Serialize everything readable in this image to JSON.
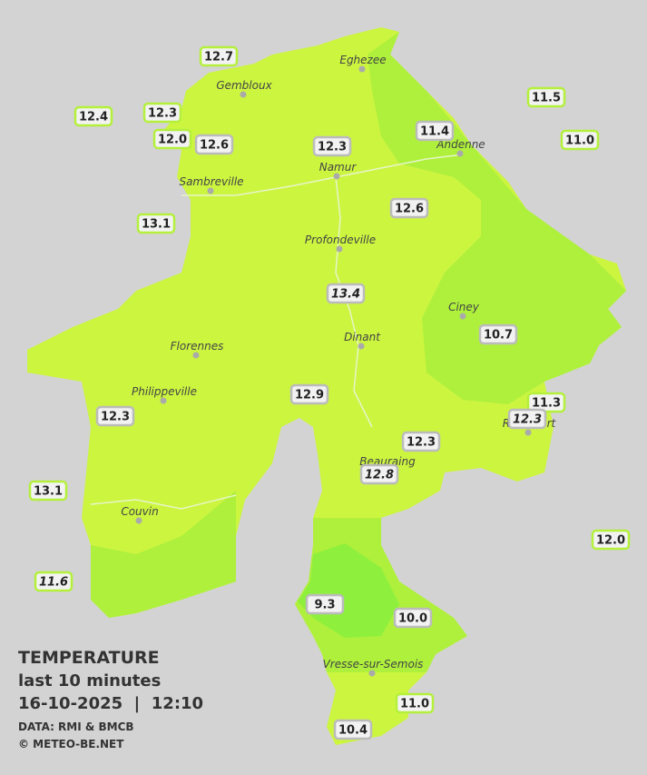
{
  "legend": {
    "title": "TEMPERATURE",
    "subtitle": "last 10 minutes",
    "datetime": "16-10-2025  |  12:10",
    "source": "DATA: RMI & BMCB",
    "copyright": "© METEO-BE.NET"
  },
  "cities": [
    "Eghezee",
    "Gembloux",
    "Andenne",
    "Namur",
    "Sambreville",
    "Profondeville",
    "Ciney",
    "Dinant",
    "Florennes",
    "Philippeville",
    "Rochefort",
    "Beauraing",
    "Couvin",
    "Vresse-sur-Semois"
  ],
  "stations": [
    {
      "value": "12.7",
      "border": "#b4f03c"
    },
    {
      "value": "12.4",
      "border": "#b4f03c"
    },
    {
      "value": "12.3",
      "border": "#b4f03c"
    },
    {
      "value": "12.0",
      "border": "#b4f03c"
    },
    {
      "value": "12.6",
      "border": "#bbbbbb"
    },
    {
      "value": "12.3",
      "border": "#bbbbbb"
    },
    {
      "value": "11.4",
      "border": "#bbbbbb"
    },
    {
      "value": "11.5",
      "border": "#b4f03c"
    },
    {
      "value": "11.0",
      "border": "#b4f03c"
    },
    {
      "value": "13.1",
      "border": "#b4f03c"
    },
    {
      "value": "12.6",
      "border": "#bbbbbb"
    },
    {
      "value": "13.4",
      "border": "#bbbbbb",
      "italic": true
    },
    {
      "value": "10.7",
      "border": "#bbbbbb"
    },
    {
      "value": "12.9",
      "border": "#bbbbbb"
    },
    {
      "value": "11.3",
      "border": "#b4f03c"
    },
    {
      "value": "12.3",
      "border": "#bbbbbb",
      "italic": true
    },
    {
      "value": "12.3",
      "border": "#bbbbbb"
    },
    {
      "value": "12.3",
      "border": "#bbbbbb"
    },
    {
      "value": "12.8",
      "border": "#bbbbbb",
      "italic": true
    },
    {
      "value": "13.1",
      "border": "#b4f03c"
    },
    {
      "value": "12.0",
      "border": "#b4f03c"
    },
    {
      "value": "11.6",
      "border": "#b4f03c",
      "italic": true
    },
    {
      "value": "9.3",
      "border": "#bbbbbb"
    },
    {
      "value": "10.0",
      "border": "#bbbbbb"
    },
    {
      "value": "11.0",
      "border": "#b4f03c"
    },
    {
      "value": "10.4",
      "border": "#bbbbbb"
    }
  ]
}
